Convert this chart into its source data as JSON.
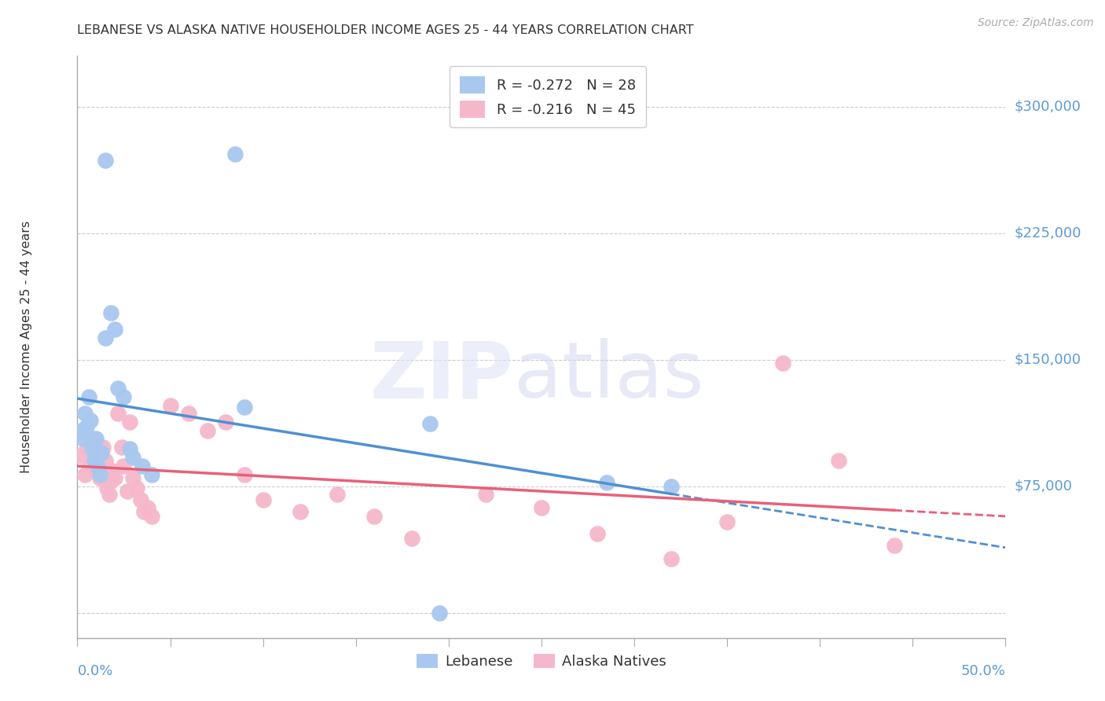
{
  "title": "LEBANESE VS ALASKA NATIVE HOUSEHOLDER INCOME AGES 25 - 44 YEARS CORRELATION CHART",
  "source": "Source: ZipAtlas.com",
  "ylabel": "Householder Income Ages 25 - 44 years",
  "ytick_values": [
    0,
    75000,
    150000,
    225000,
    300000
  ],
  "ytick_labels": [
    "",
    "$75,000",
    "$150,000",
    "$225,000",
    "$300,000"
  ],
  "xlim": [
    0.0,
    0.5
  ],
  "ylim": [
    -15000,
    330000
  ],
  "lebanese_R": "-0.272",
  "lebanese_N": "28",
  "alaska_R": "-0.216",
  "alaska_N": "45",
  "lebanese_color": "#a8c8f0",
  "alaska_color": "#f5b8cb",
  "lebanese_line_color": "#5090d0",
  "alaska_line_color": "#e8607a",
  "lebanese_x": [
    0.002,
    0.003,
    0.004,
    0.005,
    0.006,
    0.007,
    0.008,
    0.009,
    0.01,
    0.011,
    0.012,
    0.013,
    0.015,
    0.018,
    0.02,
    0.022,
    0.025,
    0.028,
    0.03,
    0.035,
    0.04,
    0.19,
    0.285,
    0.32,
    0.015,
    0.085,
    0.09,
    0.195
  ],
  "lebanese_y": [
    108000,
    103000,
    118000,
    110000,
    128000,
    114000,
    97000,
    90000,
    103000,
    87000,
    82000,
    95000,
    163000,
    178000,
    168000,
    133000,
    128000,
    97000,
    92000,
    87000,
    82000,
    112000,
    77000,
    75000,
    268000,
    272000,
    122000,
    0
  ],
  "alaska_x": [
    0.002,
    0.004,
    0.005,
    0.007,
    0.008,
    0.009,
    0.01,
    0.012,
    0.013,
    0.014,
    0.015,
    0.016,
    0.017,
    0.018,
    0.019,
    0.02,
    0.022,
    0.024,
    0.025,
    0.027,
    0.028,
    0.03,
    0.032,
    0.034,
    0.036,
    0.038,
    0.04,
    0.05,
    0.06,
    0.07,
    0.08,
    0.09,
    0.1,
    0.12,
    0.14,
    0.16,
    0.18,
    0.22,
    0.25,
    0.28,
    0.32,
    0.35,
    0.38,
    0.41,
    0.44
  ],
  "alaska_y": [
    93000,
    82000,
    97000,
    87000,
    103000,
    90000,
    95000,
    80000,
    84000,
    98000,
    90000,
    74000,
    70000,
    78000,
    84000,
    80000,
    118000,
    98000,
    87000,
    72000,
    113000,
    80000,
    74000,
    67000,
    60000,
    62000,
    57000,
    123000,
    118000,
    108000,
    113000,
    82000,
    67000,
    60000,
    70000,
    57000,
    44000,
    70000,
    62000,
    47000,
    32000,
    54000,
    148000,
    90000,
    40000
  ]
}
